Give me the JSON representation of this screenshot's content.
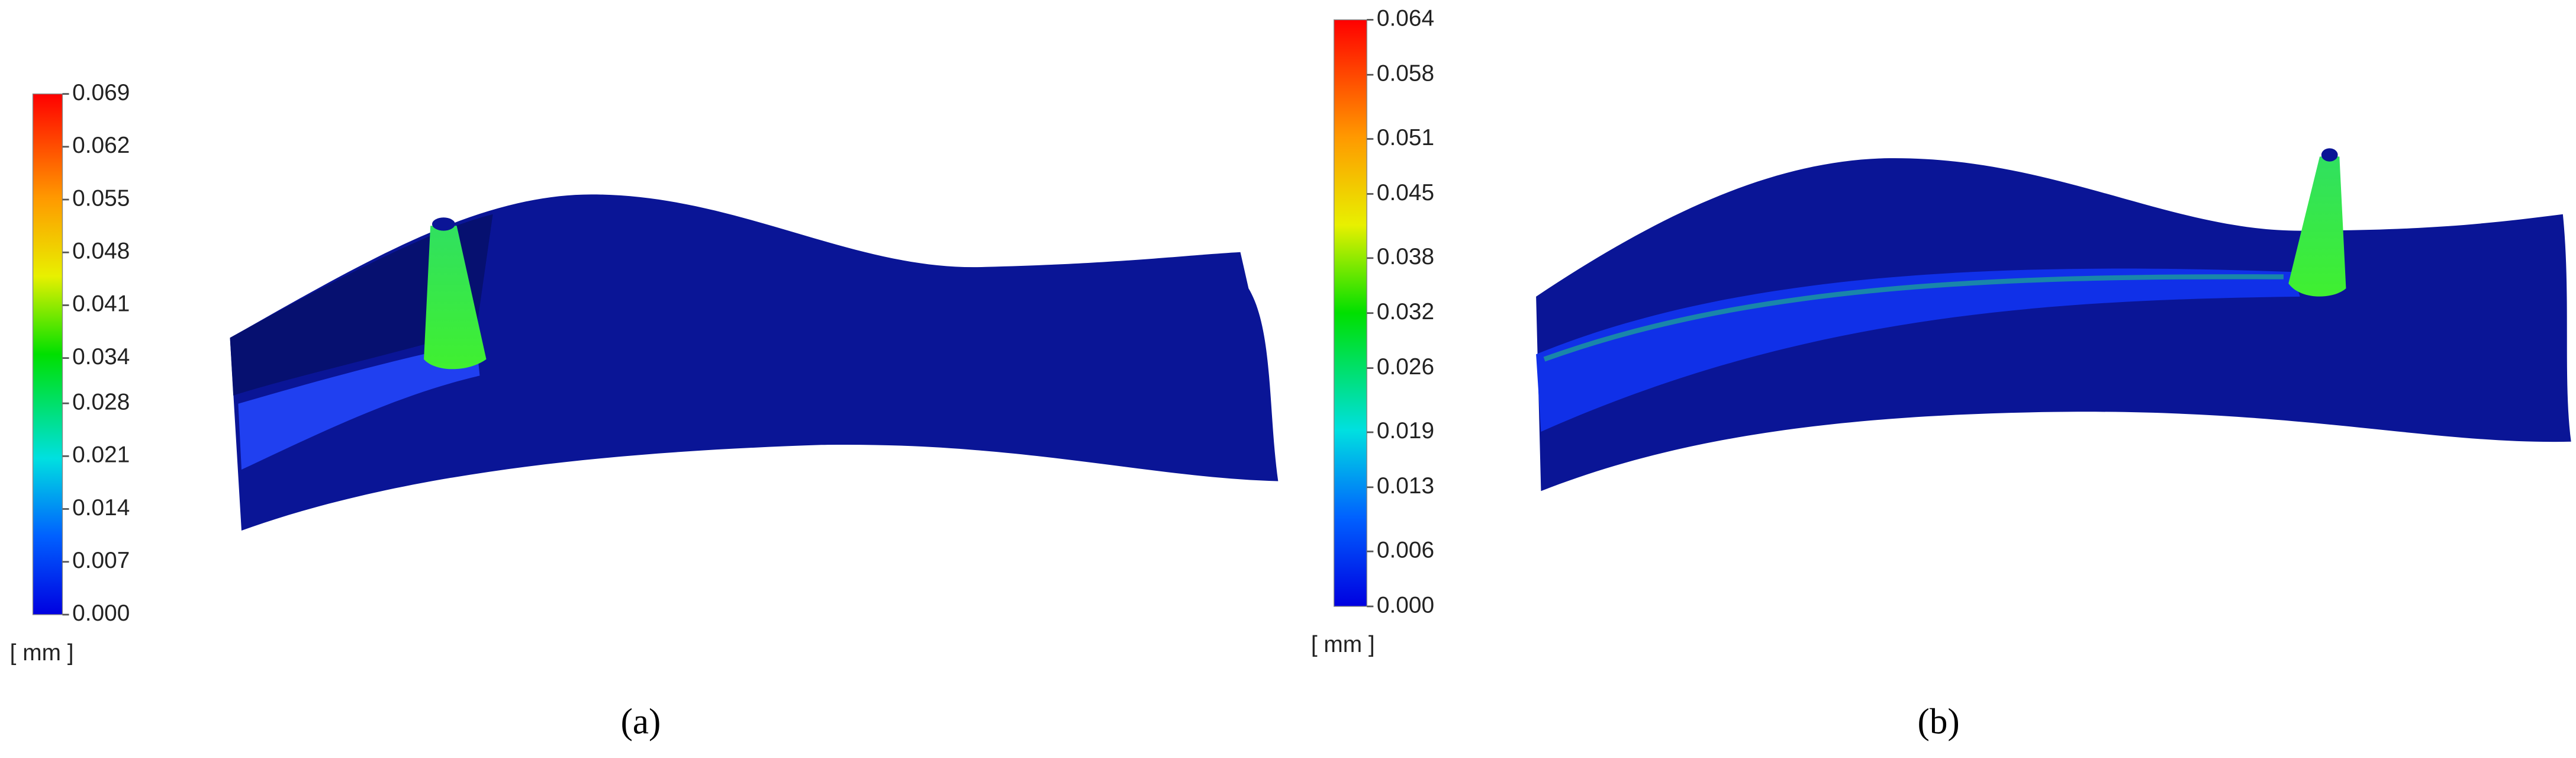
{
  "panels": [
    {
      "caption": "(a)",
      "unit": "[ mm ]",
      "range": [
        0,
        0.069
      ],
      "ticks": [
        {
          "value": 0,
          "label": "0.000"
        },
        {
          "value": 0.007,
          "label": "0.007"
        },
        {
          "value": 0.014,
          "label": "0.014"
        },
        {
          "value": 0.021,
          "label": "0.021"
        },
        {
          "value": 0.028,
          "label": "0.028"
        },
        {
          "value": 0.034,
          "label": "0.034"
        },
        {
          "value": 0.041,
          "label": "0.041"
        },
        {
          "value": 0.048,
          "label": "0.048"
        },
        {
          "value": 0.055,
          "label": "0.055"
        },
        {
          "value": 0.062,
          "label": "0.062"
        },
        {
          "value": 0.069,
          "label": "0.069"
        }
      ]
    },
    {
      "caption": "(b)",
      "unit": "[ mm ]",
      "range": [
        0,
        0.064
      ],
      "ticks": [
        {
          "value": 0,
          "label": "0.000"
        },
        {
          "value": 0.006,
          "label": "0.006"
        },
        {
          "value": 0.013,
          "label": "0.013"
        },
        {
          "value": 0.019,
          "label": "0.019"
        },
        {
          "value": 0.026,
          "label": "0.026"
        },
        {
          "value": 0.032,
          "label": "0.032"
        },
        {
          "value": 0.038,
          "label": "0.038"
        },
        {
          "value": 0.045,
          "label": "0.045"
        },
        {
          "value": 0.051,
          "label": "0.051"
        },
        {
          "value": 0.058,
          "label": "0.058"
        },
        {
          "value": 0.064,
          "label": "0.064"
        }
      ]
    }
  ]
}
